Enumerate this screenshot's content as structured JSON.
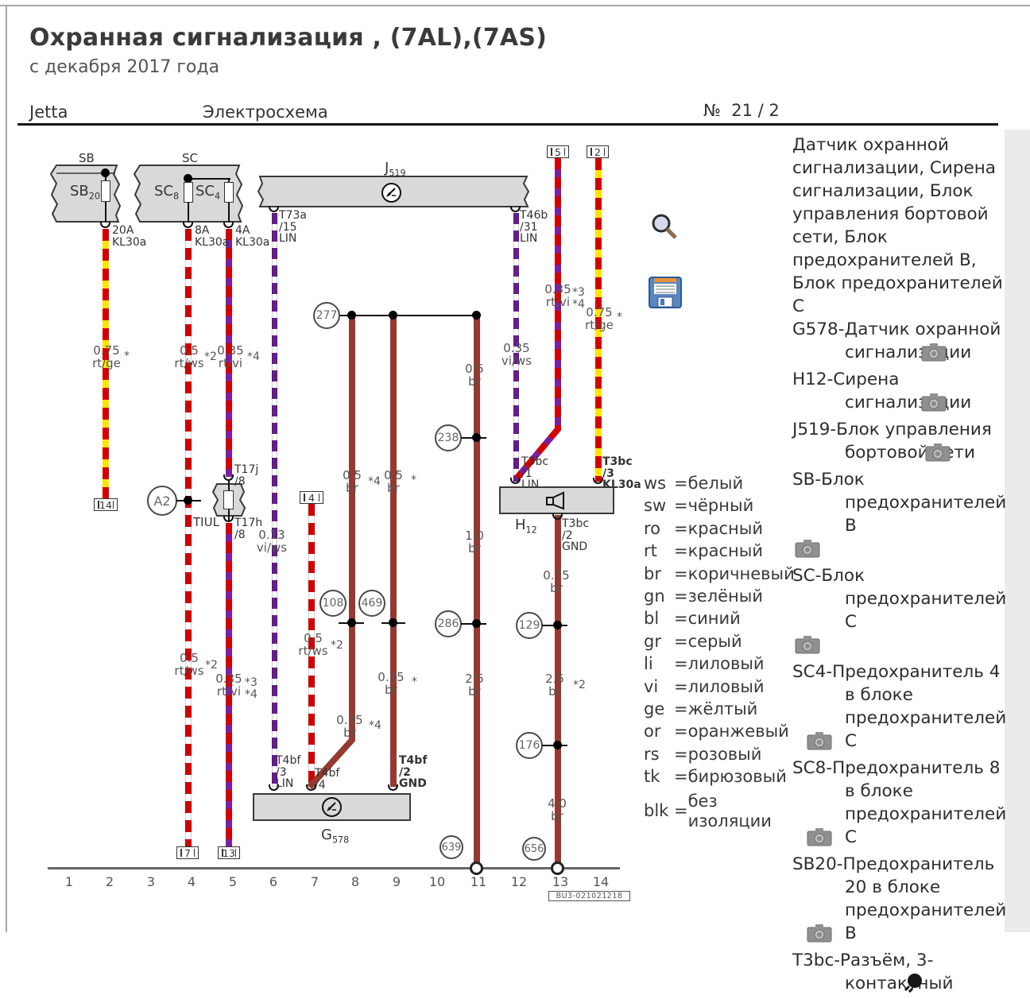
{
  "title": "Охранная сигнализация , (7AL),(7AS)",
  "subtitle": "с декабря 2017 года",
  "header": {
    "model": "Jetta",
    "doc_type": "Электросхема",
    "page_no_sign": "№",
    "page": "21 / 2"
  },
  "sidebar": {
    "entries": [
      {
        "text": "Датчик охранной\nсигнализации, Сирена\nсигнализации, Блок\nуправления бортовой\nсети, Блок\nпредохранителей B,\nБлок предохранителей\nC"
      },
      {
        "text": "G578-Датчик охранной\nсигнализации"
      },
      {
        "text": "H12-Сирена\nсигнализации"
      },
      {
        "text": "J519-Блок управления\nбортовой сети"
      },
      {
        "text": "SB-Блок\nпредохранителей B\n"
      },
      {
        "text": "SC-Блок\nпредохранителей C\n"
      },
      {
        "text": "SC4-Предохранитель 4\nв блоке\nпредохранителей\nC"
      },
      {
        "text": "SC8-Предохранитель 8\nв блоке\nпредохранителей\nC"
      },
      {
        "text": "SB20-Предохранитель\n20 в блоке\nпредохранителей\nB"
      },
      {
        "text": "T3bc-Разъём, 3-\nконтактный"
      }
    ]
  },
  "legend": {
    "rows": [
      {
        "abbr": "ws",
        "name": "белый"
      },
      {
        "abbr": "sw",
        "name": "чёрный"
      },
      {
        "abbr": "ro",
        "name": "красный"
      },
      {
        "abbr": "rt",
        "name": "красный"
      },
      {
        "abbr": "br",
        "name": "коричневый"
      },
      {
        "abbr": "gn",
        "name": "зелёный"
      },
      {
        "abbr": "bl",
        "name": "синий"
      },
      {
        "abbr": "gr",
        "name": "серый"
      },
      {
        "abbr": "li",
        "name": "лиловый"
      },
      {
        "abbr": "vi",
        "name": "лиловый"
      },
      {
        "abbr": "ge",
        "name": "жёлтый"
      },
      {
        "abbr": "or",
        "name": "оранжевый"
      },
      {
        "abbr": "rs",
        "name": "розовый"
      },
      {
        "abbr": "tk",
        "name": "бирюзовый"
      }
    ],
    "blk_abbr": "blk",
    "blk_name": "без\nизоляции"
  },
  "dia": {
    "sb_title": "SB",
    "sc_title": "SC",
    "sb20_main": "SB",
    "sb20_sub": "20",
    "sc8_main": "SC",
    "sc8_sub": "8",
    "sc4_main": "SC",
    "sc4_sub": "4",
    "j519_main": "J",
    "j519_sub": "519",
    "h12_main": "H",
    "h12_sub": "12",
    "g578_main": "G",
    "g578_sub": "578",
    "tiul": "TIUL",
    "conn": {
      "c5": "5",
      "c2": "2",
      "c14": "14",
      "c4": "4",
      "c7": "7",
      "c13": "13"
    },
    "node": {
      "n277": "277",
      "a2": "A2",
      "n238": "238",
      "n108": "108",
      "n469": "469",
      "n286": "286",
      "n129": "129",
      "n176": "176",
      "n639": "639",
      "n656": "656"
    },
    "pin": {
      "sb": "20A\nKL30a",
      "sc8": "8A\nKL30a",
      "sc4": "4A\nKL30a",
      "t73a": "T73a\n/15\nLIN",
      "t46b": "T46b\n/31\nLIN",
      "t3bc1": "T3bc\n/1\nLIN",
      "t3bc3": "T3bc\n/3\nKL30a",
      "t3bc2": "T3bc\n/2\nGND",
      "t4bf3": "T4bf\n/3\nLIN",
      "t4bf4": "T4bf\n/4",
      "t4bf2": "T4bf\n/2\nGND",
      "t17j": "T17j\n/8",
      "t17h": "T17h\n/8"
    },
    "wl": {
      "w1": "0.75\nrt/ge",
      "w1s": "*",
      "w2": "0.5\nrt/ws",
      "w2s": "*2",
      "w3": "0.35\nrt/vi",
      "w3s": "*4",
      "w4": "0.35\nvi/ws",
      "w5": "0.35\nrt/vi",
      "w5s3": "*3",
      "w5s4": "*4",
      "w6": "0.35\nrt/vi",
      "w6s3": "*3",
      "w6s4": "*4",
      "w6b": "0.75\nrt/ge",
      "w6bs": "*",
      "w7": "0.13\nvi/ws",
      "w8": "0.5\nbr",
      "w8s": "*4",
      "w9": "0.5\nbr",
      "w9s": "*",
      "w10": "0.5\nbr",
      "w11": "1.0\nbr",
      "w12": "2.5\nbr",
      "w13": "0.5\nrt/ws",
      "w13s": "*2",
      "w15": "0.5\nrt/ws",
      "w15s": "*2",
      "w16": "0.35\nbr",
      "w16s": "*4",
      "w17": "0.35\nbr",
      "w17s": "*",
      "w18": "0.75\nbr",
      "w19": "2.5\nbr",
      "w19s": "*2",
      "w20": "4.0\nbr"
    },
    "grid": [
      "1",
      "2",
      "3",
      "4",
      "5",
      "6",
      "7",
      "8",
      "9",
      "10",
      "11",
      "12",
      "13",
      "14"
    ],
    "part_number": "BU3-021021218"
  },
  "colors": {
    "wire_red": "#d40000",
    "wire_yellow": "#ffe400",
    "wire_violet": "#7b1fa2",
    "wire_brown": "#943a30",
    "box_fill": "#d9d9d9",
    "box_border": "#3a3a3a"
  }
}
